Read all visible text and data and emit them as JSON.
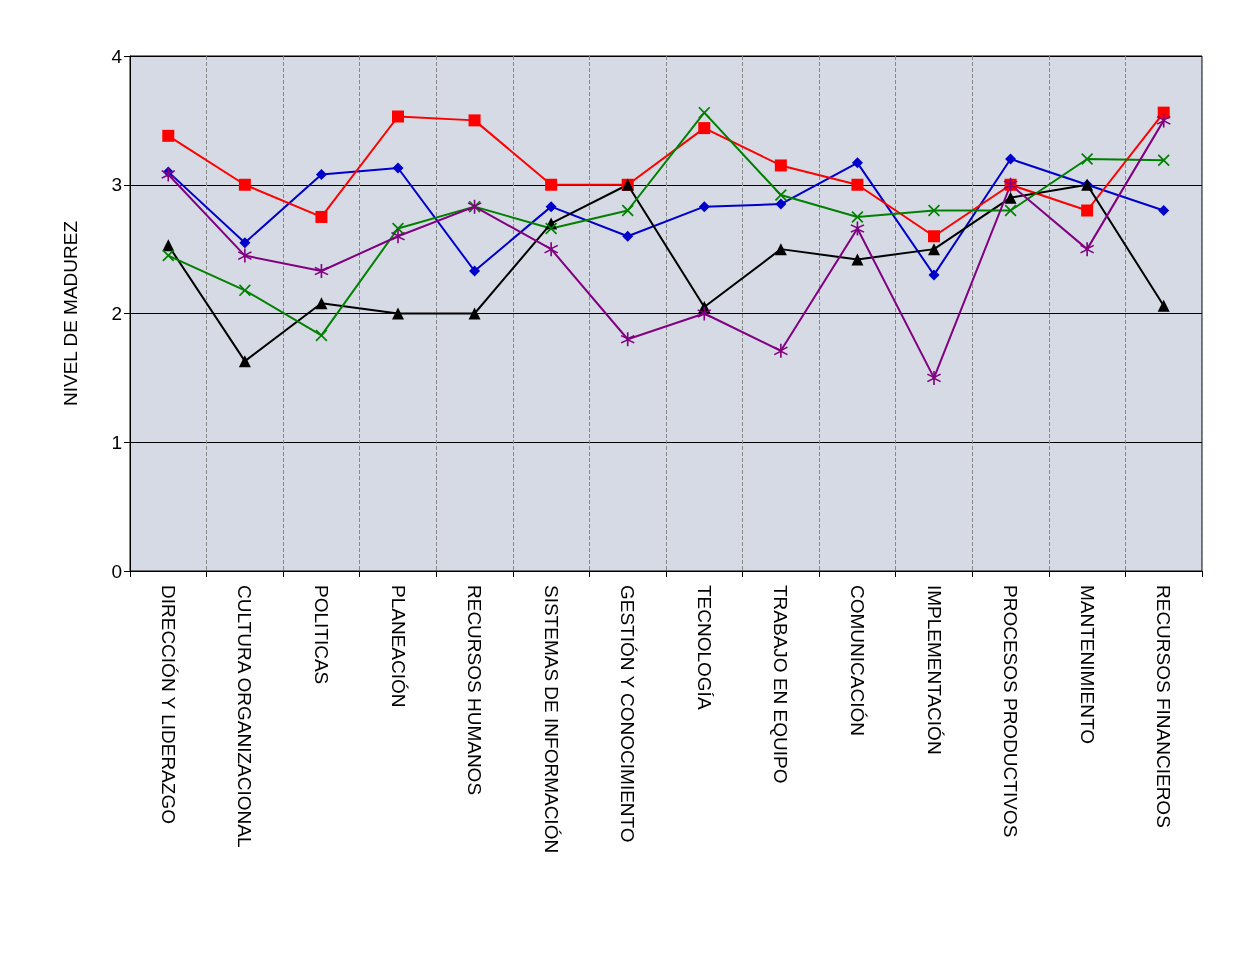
{
  "chart_data": {
    "type": "line",
    "ylabel": "NIVEL DE MADUREZ",
    "categories": [
      "DIRECCIÓN Y LIDERAZGO",
      "CULTURA ORGANIZACIONAL",
      "POLITICAS",
      "PLANEACIÓN",
      "RECURSOS HUMANOS",
      "SISTEMAS DE INFORMACIÓN",
      "GESTIÓN Y CONOCIMIENTO",
      "TECNOLOGÍA",
      "TRABAJO EN EQUIPO",
      "COMUNICACIÓN",
      "IMPLEMENTACIÓN",
      "PROCESOS PRODUCTIVOS",
      "MANTENIMIENTO",
      "RECURSOS FINANCIEROS"
    ],
    "series": [
      {
        "color": "#0000cc",
        "marker": "diamond",
        "values": [
          3.1,
          2.55,
          3.08,
          3.13,
          2.33,
          2.83,
          2.6,
          2.83,
          2.85,
          3.17,
          2.3,
          3.2,
          3.0,
          2.8
        ]
      },
      {
        "color": "#ff0000",
        "marker": "square",
        "values": [
          3.38,
          3.0,
          2.75,
          3.53,
          3.5,
          3.0,
          3.0,
          3.44,
          3.15,
          3.0,
          2.6,
          3.0,
          2.8,
          3.56
        ]
      },
      {
        "color": "#000000",
        "marker": "triangle",
        "values": [
          2.53,
          1.63,
          2.08,
          2.0,
          2.0,
          2.7,
          3.0,
          2.05,
          2.5,
          2.42,
          2.5,
          2.9,
          3.0,
          2.06
        ]
      },
      {
        "color": "#008000",
        "marker": "cross",
        "values": [
          2.45,
          2.18,
          1.83,
          2.66,
          2.83,
          2.66,
          2.8,
          3.56,
          2.92,
          2.75,
          2.8,
          2.8,
          3.2,
          3.19
        ]
      },
      {
        "color": "#800080",
        "marker": "star",
        "values": [
          3.08,
          2.45,
          2.33,
          2.6,
          2.83,
          2.5,
          1.8,
          2.0,
          1.71,
          2.66,
          1.5,
          3.0,
          2.5,
          3.5
        ]
      }
    ],
    "ylim": [
      0,
      4
    ],
    "yticks": [
      0,
      1,
      2,
      3,
      4
    ],
    "grid": true,
    "line_style": "solid"
  }
}
